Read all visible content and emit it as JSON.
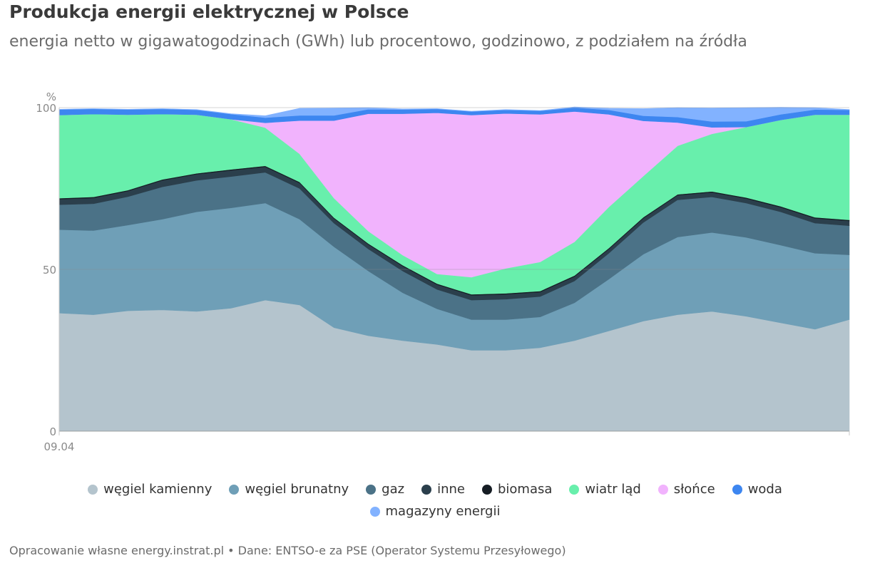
{
  "header": {
    "title": "Produkcja energii elektrycznej w Polsce",
    "subtitle": "energia netto w gigawatogodzinach (GWh) lub procentowo, godzinowo, z podziałem na źródła"
  },
  "footer": {
    "source": "Opracowanie własne energy.instrat.pl • Dane: ENTSO-e za PSE (Operator Systemu Przesyłowego)"
  },
  "chart_data": {
    "type": "area",
    "stacked": true,
    "ylabel": "%",
    "ylim": [
      0,
      100
    ],
    "yticks": [
      0,
      50,
      100
    ],
    "x": [
      0,
      1,
      2,
      3,
      4,
      5,
      6,
      7,
      8,
      9,
      10,
      11,
      12,
      13,
      14,
      15,
      16,
      17,
      18,
      19,
      20,
      21,
      22,
      23
    ],
    "xtick_labels": [
      {
        "x": 0,
        "label": "09.04"
      }
    ],
    "grid": true,
    "legend_position": "bottom",
    "series": [
      {
        "name": "węgiel kamienny",
        "color": "#b4c4cd",
        "values": [
          36.5,
          36,
          37.2,
          37.5,
          37,
          38,
          40.5,
          39,
          32,
          29.5,
          28,
          26.8,
          25,
          25,
          25.8,
          28,
          31,
          34,
          36,
          37,
          35.5,
          33.5,
          31.5,
          34.5
        ]
      },
      {
        "name": "węgiel brunatny",
        "color": "#6f9fb7",
        "values": [
          25.8,
          26,
          26.5,
          28,
          30.8,
          31,
          30,
          26.5,
          25,
          20,
          14.8,
          11,
          9.5,
          9.5,
          9.5,
          11.7,
          16,
          20.7,
          24,
          24.4,
          24.4,
          24,
          23.5,
          20
        ]
      },
      {
        "name": "gaz",
        "color": "#4b7287",
        "values": [
          7.7,
          8.3,
          8.8,
          10,
          9.7,
          9.7,
          9.5,
          9.5,
          7.3,
          6.8,
          6.7,
          6,
          6,
          6.3,
          6.3,
          6.7,
          8,
          9.8,
          11.5,
          11,
          10.6,
          10.3,
          9.3,
          9
        ]
      },
      {
        "name": "inne",
        "color": "#2b3f4c",
        "values": [
          1.7,
          1.8,
          1.7,
          2,
          1.9,
          1.9,
          1.7,
          1.7,
          1.4,
          1.4,
          1.5,
          1.5,
          1.5,
          1.5,
          1.4,
          1.4,
          1.3,
          1.3,
          1.4,
          1.4,
          1.4,
          1.4,
          1.5,
          1.5
        ]
      },
      {
        "name": "biomasa",
        "color": "#161d24",
        "values": [
          0.3,
          0.3,
          0.3,
          0.3,
          0.3,
          0.3,
          0.3,
          0.3,
          0.3,
          0.3,
          0.3,
          0.3,
          0.3,
          0.3,
          0.3,
          0.3,
          0.3,
          0.3,
          0.3,
          0.3,
          0.3,
          0.3,
          0.3,
          0.3
        ]
      },
      {
        "name": "wiatr ląd",
        "color": "#68efac",
        "values": [
          25.7,
          25.6,
          23.3,
          20.2,
          18.1,
          15.5,
          11.8,
          8.7,
          6,
          3.8,
          3.1,
          3,
          5.3,
          7.7,
          9,
          10.4,
          12.7,
          12.7,
          15,
          17.8,
          21.8,
          26.7,
          31.7,
          32.5
        ]
      },
      {
        "name": "słońce",
        "color": "#f1b3fd",
        "values": [
          0,
          0,
          0,
          0,
          0,
          0,
          1.5,
          10.3,
          24,
          36.3,
          43.7,
          49.8,
          50.1,
          47.9,
          45.6,
          40.3,
          28.6,
          17.1,
          7.2,
          2,
          0,
          0,
          0,
          0
        ]
      },
      {
        "name": "woda",
        "color": "#3d86f0",
        "values": [
          1.7,
          1.6,
          1.6,
          1.6,
          1.5,
          1.6,
          1.6,
          1.6,
          1.6,
          1.4,
          1.3,
          1.2,
          1.1,
          1.1,
          1.1,
          1.2,
          1.4,
          1.6,
          1.7,
          1.8,
          1.8,
          1.7,
          1.6,
          1.5
        ]
      },
      {
        "name": "magazyny energii",
        "color": "#82b2ff",
        "values": [
          0.1,
          0.1,
          0.1,
          0.1,
          0.1,
          0.1,
          0.6,
          2.2,
          2.3,
          0.5,
          0.2,
          0.1,
          0.1,
          0.1,
          0.1,
          0.2,
          0.5,
          2.2,
          2.9,
          4.2,
          4.2,
          2.2,
          0.6,
          0.1
        ]
      }
    ]
  }
}
